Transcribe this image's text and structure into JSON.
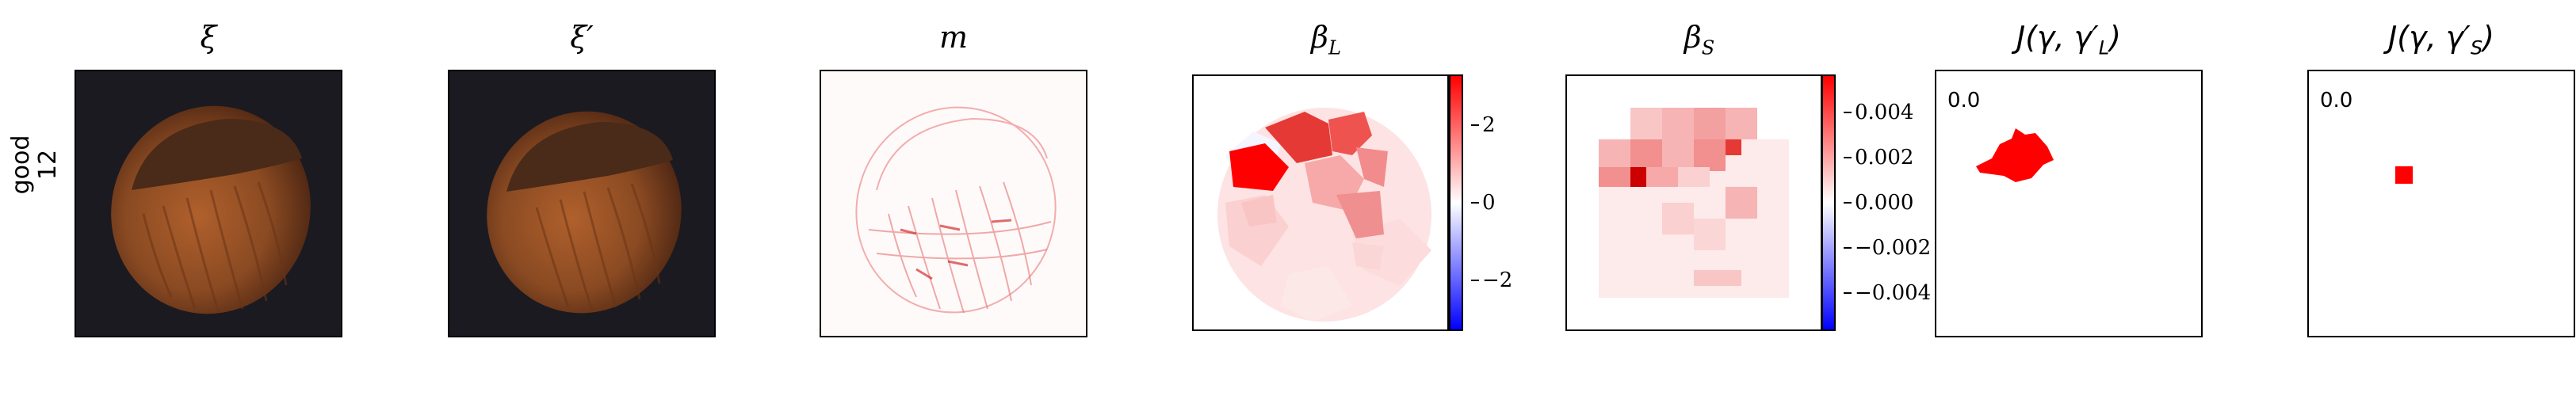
{
  "row_label": {
    "line1": "good",
    "line2": "12"
  },
  "panels": [
    {
      "title": "ξ"
    },
    {
      "title": "ξ′"
    },
    {
      "title": "m"
    },
    {
      "title_var": "β",
      "title_sub": "L"
    },
    {
      "title_var": "β",
      "title_sub": "S"
    },
    {
      "title_prefix": "J(γ, γ′",
      "title_sub": "L",
      "title_suffix": ")",
      "value": "0.0"
    },
    {
      "title_prefix": "J(γ, γ′",
      "title_sub": "S",
      "title_suffix": ")",
      "value": "0.0"
    }
  ],
  "colorbar_L": {
    "ticks": [
      "2",
      "0",
      "−2"
    ],
    "tick_values": [
      2,
      0,
      -2
    ],
    "range": [
      -3.3,
      3.3
    ],
    "colors": {
      "high": "#ff0000",
      "mid": "#ffffff",
      "low": "#0000ff"
    }
  },
  "colorbar_S": {
    "ticks": [
      "0.004",
      "0.002",
      "0.000",
      "−0.002",
      "−0.004"
    ],
    "tick_values": [
      0.004,
      0.002,
      0.0,
      -0.002,
      -0.004
    ],
    "range": [
      -0.0057,
      0.0057
    ],
    "colors": {
      "high": "#ff0000",
      "mid": "#ffffff",
      "low": "#0000ff"
    }
  },
  "colors": {
    "background_dark": "#1b1a20",
    "nut_shell": "#8a4a22",
    "nut_cap": "#4a2a18",
    "highlight": "#ff0000"
  }
}
